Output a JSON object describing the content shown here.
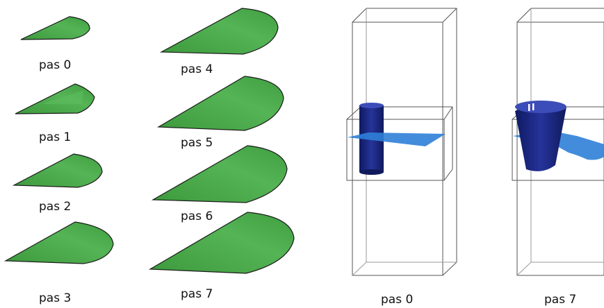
{
  "colors": {
    "leaf_fill": "#4aa84a",
    "leaf_edge": "#1a1a1a",
    "box_line": "#555555",
    "cylinder": "#1d2a80",
    "plane": "#2f7fd8"
  },
  "leaf_panels": [
    {
      "label": "pas 0"
    },
    {
      "label": "pas 1"
    },
    {
      "label": "pas 2"
    },
    {
      "label": "pas 3"
    },
    {
      "label": "pas 4"
    },
    {
      "label": "pas 5"
    },
    {
      "label": "pas 6"
    },
    {
      "label": "pas 7"
    }
  ],
  "box_panels": [
    {
      "label": "pas 0"
    },
    {
      "label": "pas 7"
    }
  ]
}
